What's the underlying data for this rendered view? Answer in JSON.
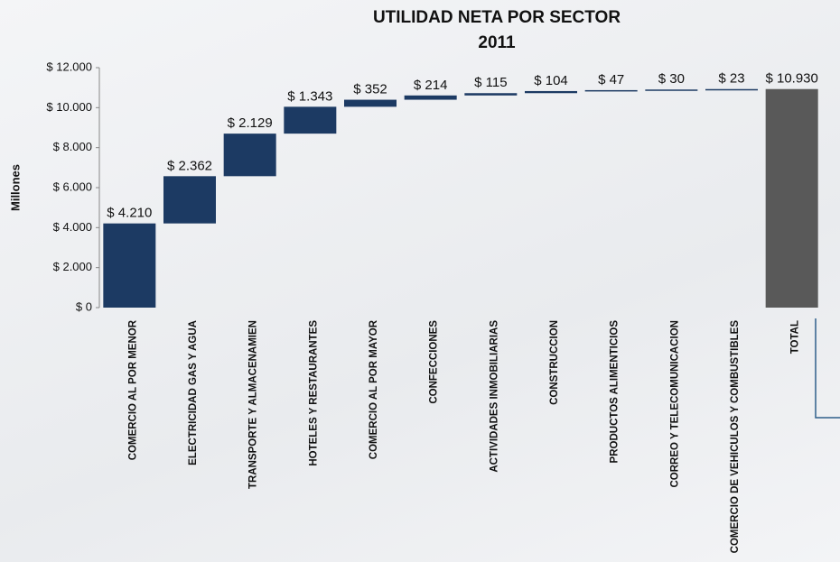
{
  "chart_data": {
    "type": "waterfall",
    "title": "UTILIDAD NETA POR SECTOR",
    "subtitle": "2011",
    "y_label": "Millones",
    "categories": [
      "COMERCIO AL POR MENOR",
      "ELECTRICIDAD GAS Y AGUA",
      "TRANSPORTE Y ALMACENAMIEN",
      "HOTELES Y RESTAURANTES",
      "COMERCIO AL POR MAYOR",
      "CONFECCIONES",
      "ACTIVIDADES INMOBILIARIAS",
      "CONSTRUCCION",
      "PRODUCTOS ALIMENTICIOS",
      "CORREO Y TELECOMUNICACION",
      "COMERCIO DE VEHICULOS Y COMBUSTIBLES",
      "TOTAL"
    ],
    "values": [
      4210,
      2362,
      2129,
      1343,
      352,
      214,
      115,
      104,
      47,
      30,
      23,
      10930
    ],
    "value_labels": [
      "$ 4.210",
      "$ 2.362",
      "$ 2.129",
      "$ 1.343",
      "$ 352",
      "$ 214",
      "$ 115",
      "$ 104",
      "$ 47",
      "$ 30",
      "$ 23",
      "$ 10.930"
    ],
    "measure": [
      "relative",
      "relative",
      "relative",
      "relative",
      "relative",
      "relative",
      "relative",
      "relative",
      "relative",
      "relative",
      "relative",
      "total"
    ],
    "color": "#1c3a63",
    "total_color": "#595959",
    "ylim": [
      0,
      12000
    ],
    "yticks": [
      {
        "value": 0,
        "label": "$ 0"
      },
      {
        "value": 2000,
        "label": "$ 2.000"
      },
      {
        "value": 4000,
        "label": "$ 4.000"
      },
      {
        "value": 6000,
        "label": "$ 6.000"
      },
      {
        "value": 8000,
        "label": "$ 8.000"
      },
      {
        "value": 10000,
        "label": "$ 10.000"
      },
      {
        "value": 12000,
        "label": "$ 12.000"
      }
    ]
  }
}
